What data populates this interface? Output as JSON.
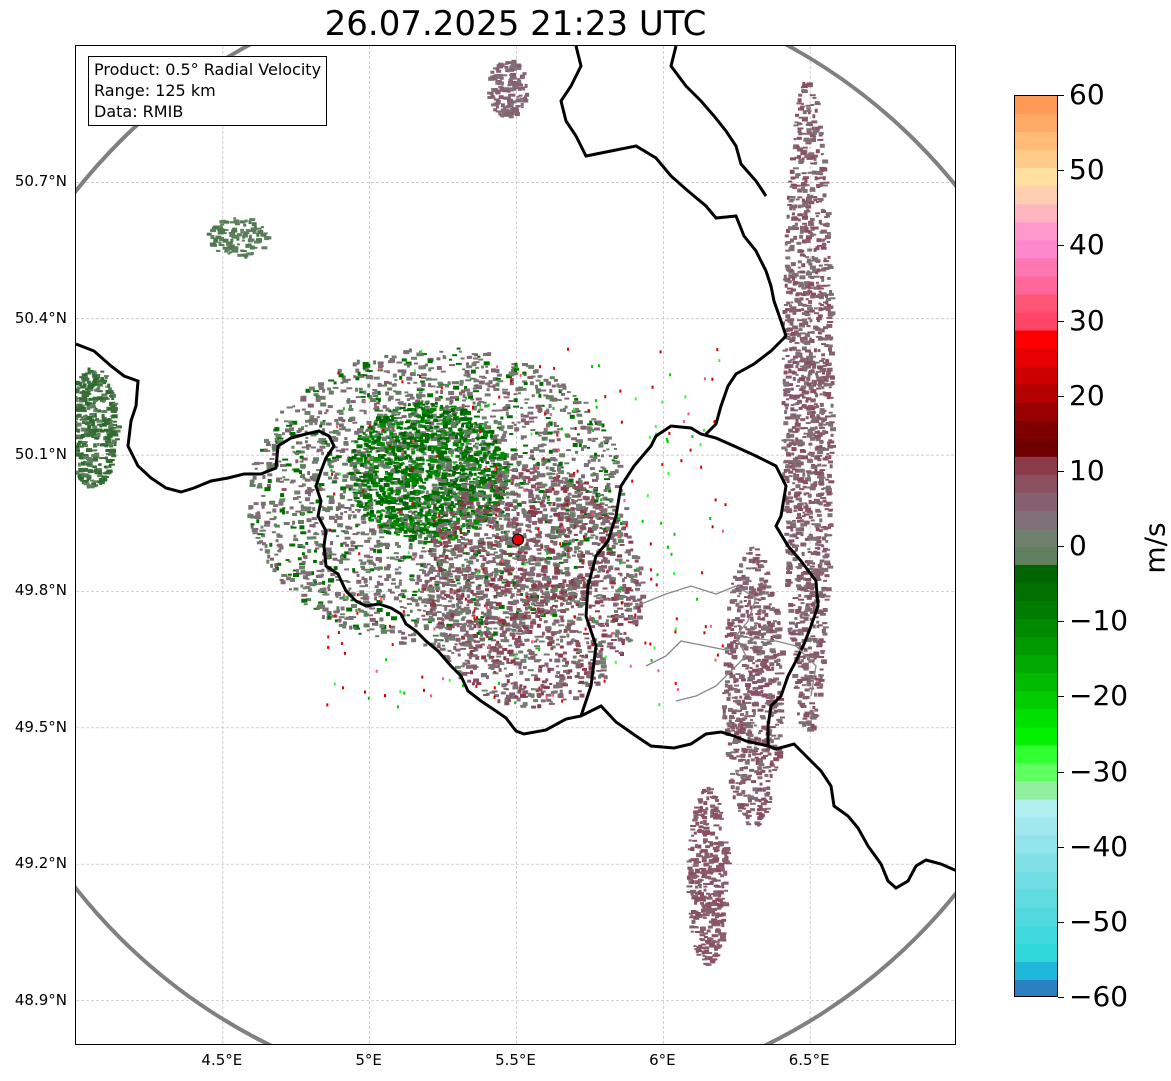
{
  "title": "26.07.2025 21:23 UTC",
  "info_box": {
    "product": "Product: 0.5° Radial Velocity",
    "range": "Range: 125 km",
    "data": "Data: RMIB"
  },
  "axes": {
    "lat_ticks": [
      "50.7°N",
      "50.4°N",
      "50.1°N",
      "49.8°N",
      "49.5°N",
      "49.2°N",
      "48.9°N"
    ],
    "lon_ticks": [
      "4.5°E",
      "5°E",
      "5.5°E",
      "6°E",
      "6.5°E"
    ],
    "lat_range": [
      48.8,
      51.0
    ],
    "lon_range": [
      4.0,
      7.0
    ]
  },
  "radar": {
    "site_lon": 5.505,
    "site_lat": 49.914,
    "range_ring_color": "#808080",
    "site_marker_color": "#e8000b"
  },
  "colorbar": {
    "unit": "m/s",
    "min": -60,
    "max": 60,
    "ticks": [
      "60",
      "50",
      "40",
      "30",
      "20",
      "10",
      "0",
      "−10",
      "−20",
      "−30",
      "−40",
      "−50",
      "−60"
    ],
    "colors": [
      "#ff9955",
      "#ffaa66",
      "#ffbb77",
      "#ffcc88",
      "#ffe0a0",
      "#ffd0b0",
      "#ffb6c1",
      "#ff99cc",
      "#ff88cc",
      "#ff77b0",
      "#ff6699",
      "#ff5577",
      "#ff4466",
      "#ff0000",
      "#e60000",
      "#cc0000",
      "#b30000",
      "#990000",
      "#800000",
      "#6e0000",
      "#8b3a4a",
      "#8a5060",
      "#876070",
      "#7f7077",
      "#6f806c",
      "#5f7f5f",
      "#006400",
      "#007000",
      "#007d00",
      "#008a00",
      "#009900",
      "#00aa00",
      "#00bb00",
      "#00cc00",
      "#00e000",
      "#00f000",
      "#30ff30",
      "#60ff60",
      "#90f0a0",
      "#b0f0f0",
      "#a0e8ee",
      "#90e4ea",
      "#80e0e6",
      "#70dce4",
      "#60dce0",
      "#50dae0",
      "#40dade",
      "#30d8dc",
      "#20b8d8",
      "#2a80c0"
    ]
  }
}
